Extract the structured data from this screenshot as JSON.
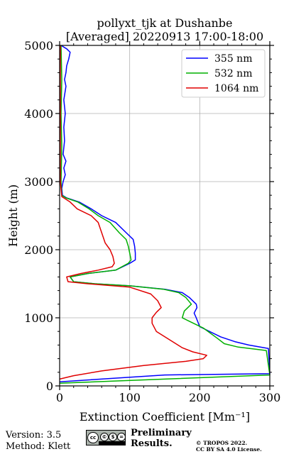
{
  "chart_data": {
    "type": "line",
    "title": "pollyxt_tjk at Dushanbe",
    "subtitle": "[Averaged] 20220913 17:00-18:00",
    "xlabel": "Extinction Coefficient [Mm⁻¹]",
    "ylabel": "Height (m)",
    "xlim": [
      0,
      300
    ],
    "ylim": [
      0,
      5000
    ],
    "xticks": [
      0,
      100,
      200,
      300
    ],
    "yticks": [
      0,
      1000,
      2000,
      3000,
      4000,
      5000
    ],
    "grid": true,
    "legend_position": "top-right",
    "series": [
      {
        "name": "355 nm",
        "color": "#0000ff",
        "points": [
          [
            0,
            60
          ],
          [
            150,
            160
          ],
          [
            300,
            180
          ],
          [
            298,
            550
          ],
          [
            270,
            600
          ],
          [
            250,
            650
          ],
          [
            230,
            720
          ],
          [
            200,
            870
          ],
          [
            195,
            1000
          ],
          [
            192,
            1070
          ],
          [
            196,
            1150
          ],
          [
            195,
            1200
          ],
          [
            185,
            1300
          ],
          [
            175,
            1370
          ],
          [
            150,
            1420
          ],
          [
            100,
            1470
          ],
          [
            50,
            1500
          ],
          [
            20,
            1530
          ],
          [
            15,
            1600
          ],
          [
            40,
            1650
          ],
          [
            80,
            1700
          ],
          [
            100,
            1800
          ],
          [
            108,
            1850
          ],
          [
            108,
            1950
          ],
          [
            107,
            2050
          ],
          [
            105,
            2150
          ],
          [
            95,
            2250
          ],
          [
            80,
            2400
          ],
          [
            60,
            2500
          ],
          [
            45,
            2600
          ],
          [
            28,
            2700
          ],
          [
            10,
            2760
          ],
          [
            4,
            2800
          ],
          [
            3,
            2900
          ],
          [
            5,
            3000
          ],
          [
            8,
            3100
          ],
          [
            6,
            3200
          ],
          [
            9,
            3300
          ],
          [
            5,
            3400
          ],
          [
            7,
            3600
          ],
          [
            6,
            3800
          ],
          [
            8,
            4000
          ],
          [
            6,
            4200
          ],
          [
            9,
            4400
          ],
          [
            7,
            4500
          ],
          [
            9,
            4600
          ],
          [
            10,
            4700
          ],
          [
            13,
            4800
          ],
          [
            15,
            4900
          ],
          [
            10,
            4950
          ],
          [
            2,
            5000
          ]
        ]
      },
      {
        "name": "532 nm",
        "color": "#00b000",
        "points": [
          [
            0,
            40
          ],
          [
            150,
            100
          ],
          [
            300,
            160
          ],
          [
            295,
            520
          ],
          [
            255,
            570
          ],
          [
            235,
            620
          ],
          [
            225,
            700
          ],
          [
            205,
            850
          ],
          [
            185,
            950
          ],
          [
            175,
            1000
          ],
          [
            178,
            1100
          ],
          [
            188,
            1200
          ],
          [
            180,
            1300
          ],
          [
            170,
            1370
          ],
          [
            148,
            1420
          ],
          [
            100,
            1470
          ],
          [
            50,
            1500
          ],
          [
            20,
            1530
          ],
          [
            15,
            1600
          ],
          [
            40,
            1650
          ],
          [
            80,
            1700
          ],
          [
            98,
            1800
          ],
          [
            102,
            1850
          ],
          [
            100,
            1950
          ],
          [
            98,
            2050
          ],
          [
            95,
            2150
          ],
          [
            85,
            2250
          ],
          [
            72,
            2400
          ],
          [
            55,
            2500
          ],
          [
            42,
            2600
          ],
          [
            26,
            2700
          ],
          [
            9,
            2760
          ],
          [
            3,
            2800
          ],
          [
            2,
            3000
          ],
          [
            3,
            3500
          ],
          [
            2,
            4000
          ],
          [
            3,
            4500
          ],
          [
            2,
            5000
          ]
        ]
      },
      {
        "name": "1064 nm",
        "color": "#e00000",
        "points": [
          [
            0,
            100
          ],
          [
            20,
            150
          ],
          [
            60,
            220
          ],
          [
            120,
            300
          ],
          [
            180,
            360
          ],
          [
            205,
            400
          ],
          [
            210,
            450
          ],
          [
            190,
            500
          ],
          [
            175,
            560
          ],
          [
            155,
            690
          ],
          [
            138,
            800
          ],
          [
            132,
            920
          ],
          [
            132,
            1000
          ],
          [
            138,
            1080
          ],
          [
            145,
            1150
          ],
          [
            140,
            1250
          ],
          [
            130,
            1350
          ],
          [
            100,
            1450
          ],
          [
            40,
            1500
          ],
          [
            12,
            1530
          ],
          [
            10,
            1600
          ],
          [
            30,
            1650
          ],
          [
            55,
            1700
          ],
          [
            75,
            1750
          ],
          [
            78,
            1800
          ],
          [
            76,
            1900
          ],
          [
            72,
            2000
          ],
          [
            65,
            2100
          ],
          [
            60,
            2250
          ],
          [
            55,
            2400
          ],
          [
            45,
            2500
          ],
          [
            25,
            2600
          ],
          [
            15,
            2700
          ],
          [
            3,
            2780
          ],
          [
            1,
            3000
          ],
          [
            1,
            4000
          ],
          [
            1,
            5000
          ]
        ]
      }
    ]
  },
  "footer": {
    "version": "Version: 3.5",
    "method": "Method: Klett",
    "license_badge_symbols": [
      "cc",
      "©",
      "$",
      "="
    ],
    "license_badge_strip": "BY SA",
    "preliminary_line1": "Preliminary",
    "preliminary_line2": "Results.",
    "preliminary_color": "#ff3333",
    "copyright_line1": "© TROPOS 2022.",
    "copyright_line2": "CC BY SA 4.0 License."
  }
}
